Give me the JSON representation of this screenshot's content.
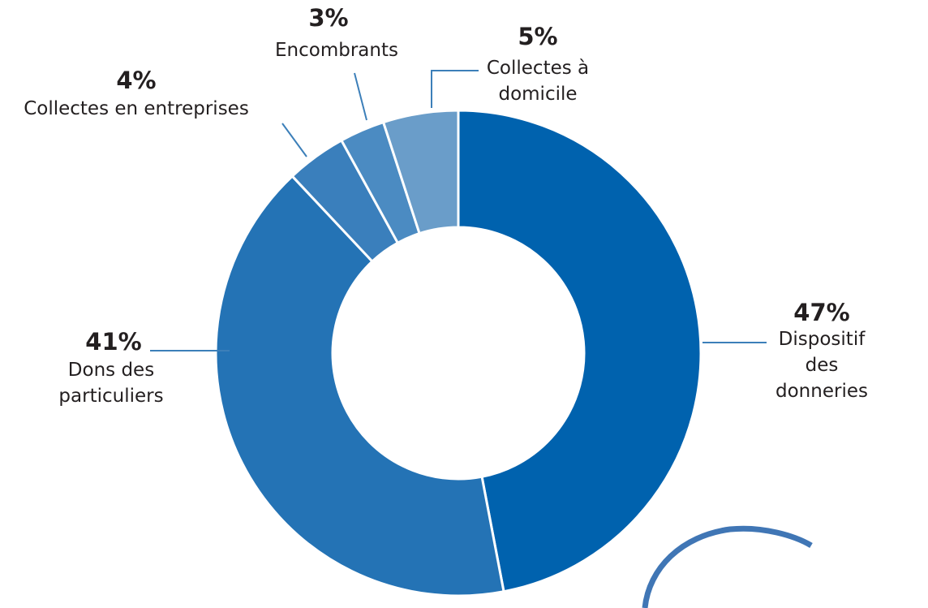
{
  "chart_data": {
    "type": "donut",
    "categories": [
      "Dispositif des\ndonneries",
      "Dons des\nparticuliers",
      "Collectes en entreprises",
      "Encombrants",
      "Collectes à\ndomicile"
    ],
    "values": [
      47,
      41,
      4,
      3,
      5
    ],
    "value_labels": [
      "47%",
      "41%",
      "4%",
      "3%",
      "5%"
    ],
    "colors": [
      "#0062ae",
      "#2473b5",
      "#3a7fbc",
      "#4b8bc2",
      "#6a9dc9"
    ]
  }
}
